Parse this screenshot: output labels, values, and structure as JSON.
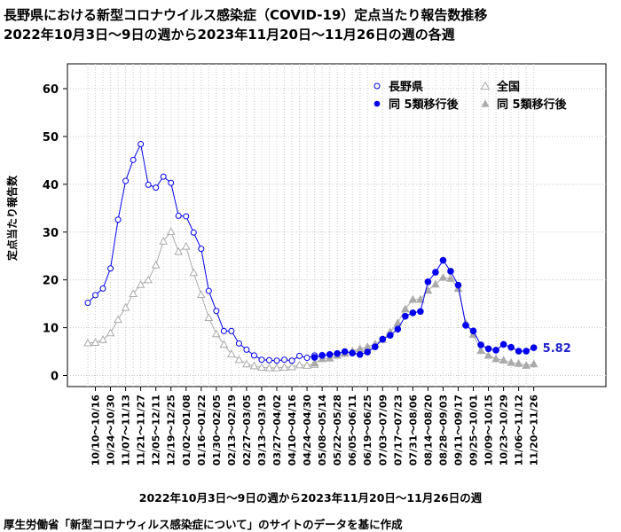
{
  "title_line1": "長野県における新型コロナウイルス感染症（COVID-19）定点当たり報告数推移",
  "title_line2": "2022年10月3日～9日の週から2023年11月20日～11月26日の週の各週",
  "xlabel": "2022年10月3日～9日の週から2023年11月20日～11月26日の週",
  "source": "厚生労働省「新型コロナウィルス感染症について」のサイトのデータを基に作成",
  "colors": {
    "nagano": "#0000ee",
    "nagano_after": "#0000ee",
    "national": "#aaaaaa",
    "national_after": "#aaaaaa",
    "last_label": "#2222cc"
  },
  "chart_data": {
    "type": "line",
    "title": "長野県における新型コロナウイルス感染症（COVID-19）定点当たり報告数推移",
    "ylabel": "定点当たり報告数",
    "xlabel": "2022年10月3日～9日の週から2023年11月20日～11月26日の週",
    "ylim": [
      0,
      60
    ],
    "yticks": [
      0,
      10,
      20,
      30,
      40,
      50,
      60
    ],
    "grid": true,
    "legend_position": "top-right",
    "tick_labels": [
      "10/10～10/16",
      "10/24～10/30",
      "11/07～11/13",
      "11/21～11/27",
      "12/05～12/11",
      "12/19～12/25",
      "01/02～01/08",
      "01/16～01/22",
      "01/30～02/05",
      "02/13～02/19",
      "02/27～03/05",
      "03/13～03/19",
      "03/27～04/02",
      "04/10～04/16",
      "04/24～04/30",
      "05/08～05/14",
      "05/22～05/28",
      "06/05～06/11",
      "06/19～06/25",
      "07/03～07/09",
      "07/17～07/23",
      "07/31～08/06",
      "08/14～08/20",
      "08/28～09/03",
      "09/11～09/17",
      "09/25～10/01",
      "10/09～10/15",
      "10/23～10/29",
      "11/06～11/12",
      "11/20～11/26"
    ],
    "first_week": "10/03～10/09",
    "series": [
      {
        "name": "長野県",
        "marker": "open-circle",
        "values": [
          15.2,
          16.8,
          18.2,
          22.4,
          32.6,
          40.7,
          45.1,
          48.4,
          39.9,
          39.3,
          41.6,
          40.3,
          33.4,
          33.3,
          29.9,
          26.5,
          17.7,
          13.5,
          9.3,
          9.3,
          6.7,
          5.4,
          4.2,
          3.3,
          3.2,
          3.1,
          3.3,
          3.1,
          4.1,
          3.7,
          4.2
        ]
      },
      {
        "name": "全国",
        "marker": "open-triangle",
        "values": [
          6.8,
          6.9,
          7.5,
          8.9,
          11.7,
          14.2,
          17.1,
          19.0,
          20.0,
          23.1,
          28.1,
          30.1,
          25.9,
          27.0,
          21.5,
          16.9,
          12.1,
          8.7,
          6.5,
          4.5,
          3.3,
          2.4,
          2.0,
          1.7,
          1.6,
          1.6,
          1.7,
          1.8,
          2.2,
          2.1,
          2.3
        ]
      },
      {
        "name": "同 5類移行後",
        "marker": "filled-circle",
        "values": [
          3.8,
          4.2,
          4.4,
          4.6,
          5.0,
          4.7,
          4.4,
          4.9,
          6.0,
          7.6,
          8.4,
          9.7,
          12.4,
          13.1,
          13.4,
          19.6,
          21.6,
          24.1,
          21.8,
          18.9,
          10.5,
          9.3,
          6.4,
          5.6,
          5.3,
          6.5,
          5.9,
          5.1,
          5.1,
          5.82
        ]
      },
      {
        "name": "同 5類移行後",
        "marker": "filled-triangle",
        "values": [
          2.6,
          3.5,
          3.6,
          4.2,
          4.6,
          5.1,
          5.6,
          6.0,
          6.6,
          7.5,
          9.1,
          11.0,
          13.9,
          15.9,
          15.9,
          17.8,
          19.1,
          20.5,
          20.3,
          18.2,
          11.0,
          8.6,
          5.2,
          4.2,
          3.5,
          3.2,
          2.7,
          2.5,
          2.1,
          2.4
        ]
      }
    ],
    "last_value_label": "5.82"
  }
}
